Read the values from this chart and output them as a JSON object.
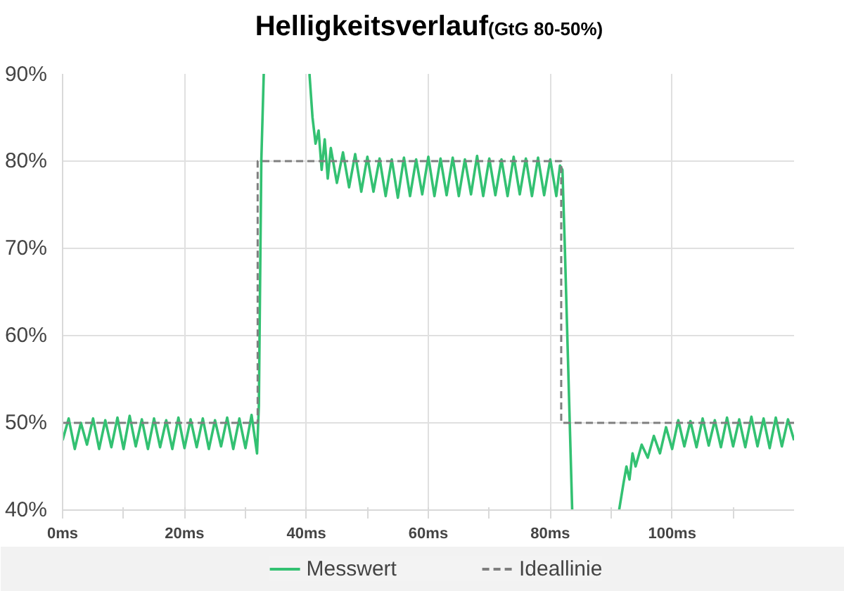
{
  "chart_data": {
    "type": "line",
    "title": "Helligkeitsverlauf",
    "subtitle": "(GtG 80-50%)",
    "xlim": [
      0,
      120
    ],
    "ylim": [
      40,
      90
    ],
    "xticks": [
      {
        "value": 0,
        "label": "0ms"
      },
      {
        "value": 10,
        "label": null
      },
      {
        "value": 20,
        "label": "20ms"
      },
      {
        "value": 30,
        "label": null
      },
      {
        "value": 40,
        "label": "40ms"
      },
      {
        "value": 50,
        "label": null
      },
      {
        "value": 60,
        "label": "60ms"
      },
      {
        "value": 70,
        "label": null
      },
      {
        "value": 80,
        "label": "80ms"
      },
      {
        "value": 90,
        "label": null
      },
      {
        "value": 100,
        "label": "100ms"
      },
      {
        "value": 110,
        "label": null
      }
    ],
    "yticks": [
      {
        "value": 40,
        "label": "40%"
      },
      {
        "value": 50,
        "label": "50%"
      },
      {
        "value": 60,
        "label": "60%"
      },
      {
        "value": 70,
        "label": "70%"
      },
      {
        "value": 80,
        "label": "80%"
      },
      {
        "value": 90,
        "label": "90%"
      }
    ],
    "grid": true,
    "legend": "bottom",
    "series": [
      {
        "name": "Messwert",
        "color": "#33c172",
        "line_style": "solid",
        "x": [
          0,
          1,
          2,
          3,
          4,
          5,
          6,
          7,
          8,
          9,
          10,
          11,
          12,
          13,
          14,
          15,
          16,
          17,
          18,
          19,
          20,
          21,
          22,
          23,
          24,
          25,
          26,
          27,
          28,
          29,
          30,
          31,
          31.9,
          32.2,
          32.6,
          33,
          36.5,
          40.5,
          41,
          41.5,
          42,
          42.5,
          43,
          43.5,
          44,
          45,
          46,
          47,
          48,
          49,
          50,
          51,
          52,
          53,
          54,
          55,
          56,
          57,
          58,
          59,
          60,
          61,
          62,
          63,
          64,
          65,
          66,
          67,
          68,
          69,
          70,
          71,
          72,
          73,
          74,
          75,
          76,
          77,
          78,
          79,
          80,
          81,
          81.6,
          82,
          82.4,
          83.2,
          83.6,
          87.5,
          91.3,
          92,
          92.5,
          93,
          93.5,
          94,
          95,
          96,
          97,
          98,
          99,
          100,
          101,
          102,
          103,
          104,
          105,
          106,
          107,
          108,
          109,
          110,
          111,
          112,
          113,
          114,
          115,
          116,
          117,
          118,
          119,
          120
        ],
        "values": [
          48,
          50.5,
          47,
          50,
          47.5,
          50.5,
          47,
          50.3,
          47.2,
          50.6,
          47,
          50.8,
          47.3,
          50.4,
          47,
          50.5,
          47.2,
          50.3,
          47,
          50.6,
          47.1,
          50.4,
          47.2,
          50.5,
          47,
          50.3,
          47.3,
          50.6,
          47,
          50.5,
          47.1,
          50.9,
          46.5,
          52,
          80,
          90,
          null,
          90,
          85,
          82,
          83.5,
          79,
          82.5,
          78,
          81.5,
          77.5,
          81,
          77,
          80.8,
          76.5,
          80.5,
          76.5,
          80.3,
          76,
          80.2,
          75.8,
          80.4,
          76,
          80.2,
          76.2,
          80.5,
          76,
          80.3,
          76.1,
          80.4,
          76,
          80.2,
          76.2,
          80.6,
          76,
          80.3,
          76.1,
          80.2,
          76,
          80.5,
          76.2,
          80.3,
          76,
          80.4,
          76.1,
          80.2,
          76,
          79.5,
          79,
          70,
          50,
          40,
          null,
          40,
          43,
          45,
          43.5,
          46.5,
          45,
          47.5,
          46,
          48.5,
          46.5,
          49.5,
          47,
          50.3,
          47.3,
          50.2,
          47.2,
          50.5,
          47.4,
          50.3,
          47.2,
          50.6,
          47.3,
          50.4,
          47.2,
          50.7,
          47.3,
          50.5,
          47.1,
          50.6,
          47.3,
          50.4,
          48
        ]
      },
      {
        "name": "Ideallinie",
        "color": "#7f7f7f",
        "line_style": "dashed",
        "x": [
          0,
          32,
          32,
          81.8,
          81.8,
          120
        ],
        "values": [
          50,
          50,
          80,
          80,
          50,
          50
        ]
      }
    ]
  }
}
